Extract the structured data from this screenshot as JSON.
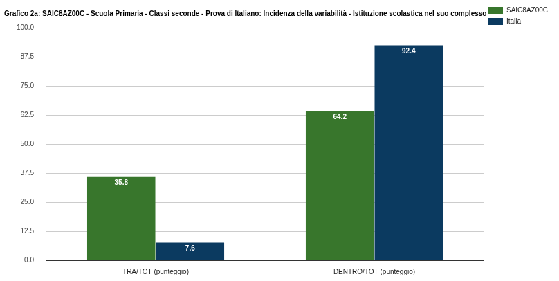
{
  "chart_data": {
    "type": "bar",
    "title": "Grafico 2a: SAIC8AZ00C - Scuola Primaria - Classi seconde - Prova di Italiano: Incidenza della variabilità - Istituzione scolastica nel suo complesso",
    "categories": [
      "TRA/TOT (punteggio)",
      "DENTRO/TOT (punteggio)"
    ],
    "series": [
      {
        "name": "SAIC8AZ00C",
        "color": "#38762c",
        "values": [
          35.8,
          64.2
        ]
      },
      {
        "name": "Italia",
        "color": "#0b3a60",
        "values": [
          7.6,
          92.4
        ]
      }
    ],
    "ylim": [
      0,
      100
    ],
    "yticks": [
      {
        "value": 0,
        "label": "0.0"
      },
      {
        "value": 12.5,
        "label": "12.5"
      },
      {
        "value": 25,
        "label": "25.0"
      },
      {
        "value": 37.5,
        "label": "37.5"
      },
      {
        "value": 50,
        "label": "50.0"
      },
      {
        "value": 62.5,
        "label": "62.5"
      },
      {
        "value": 75,
        "label": "75.0"
      },
      {
        "value": 87.5,
        "label": "87.5"
      },
      {
        "value": 100,
        "label": "100.0"
      }
    ],
    "grid": true,
    "legend": "right",
    "data_labels": true
  }
}
